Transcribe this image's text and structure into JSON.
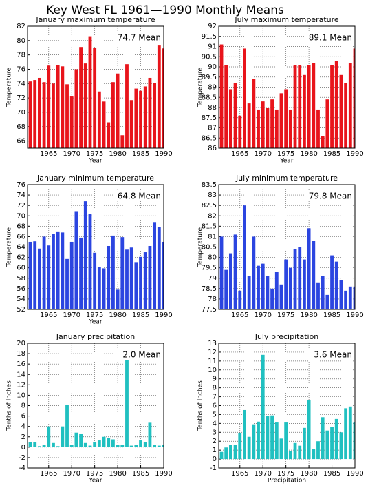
{
  "title": "Key West FL  1961—1990 Monthly Means",
  "chart_data": [
    {
      "type": "bar",
      "title": "January maximum temperature",
      "annotation": "74.7 Mean",
      "ylabel": "Temperature",
      "xlabel": "Year",
      "color": "#e8141b",
      "grid": true,
      "x": [
        1961,
        1962,
        1963,
        1964,
        1965,
        1966,
        1967,
        1968,
        1969,
        1970,
        1971,
        1972,
        1973,
        1974,
        1975,
        1976,
        1977,
        1978,
        1979,
        1980,
        1981,
        1982,
        1983,
        1984,
        1985,
        1986,
        1987,
        1988,
        1989,
        1990
      ],
      "values": [
        74.3,
        74.5,
        74.8,
        74.2,
        76.5,
        74.0,
        76.6,
        76.4,
        73.9,
        72.2,
        76.0,
        79.1,
        76.8,
        80.6,
        79.0,
        72.9,
        71.5,
        68.6,
        74.2,
        75.4,
        66.8,
        76.7,
        71.7,
        73.3,
        73.0,
        73.6,
        74.8,
        74.1,
        79.3,
        78.9
      ],
      "xlim": [
        1960.4,
        1990
      ],
      "xticks": [
        1965,
        1970,
        1975,
        1980,
        1985,
        1990
      ],
      "ylim": [
        65,
        82
      ],
      "yticks": [
        66,
        68,
        70,
        72,
        74,
        76,
        78,
        80,
        82
      ]
    },
    {
      "type": "bar",
      "title": "July maximum temperature",
      "annotation": "89.1 Mean",
      "ylabel": "Temperature",
      "xlabel": "Year",
      "color": "#e8141b",
      "grid": true,
      "x": [
        1961,
        1962,
        1963,
        1964,
        1965,
        1966,
        1967,
        1968,
        1969,
        1970,
        1971,
        1972,
        1973,
        1974,
        1975,
        1976,
        1977,
        1978,
        1979,
        1980,
        1981,
        1982,
        1983,
        1984,
        1985,
        1986,
        1987,
        1988,
        1989,
        1990
      ],
      "values": [
        91.1,
        90.1,
        88.9,
        89.2,
        87.6,
        90.9,
        88.2,
        89.4,
        87.9,
        88.3,
        88.0,
        88.4,
        87.9,
        88.7,
        88.9,
        87.9,
        90.1,
        90.1,
        89.6,
        90.1,
        90.2,
        87.9,
        86.6,
        88.4,
        90.1,
        90.3,
        89.6,
        89.2,
        90.2,
        90.9
      ],
      "xlim": [
        1960.4,
        1990
      ],
      "xticks": [
        1965,
        1970,
        1975,
        1980,
        1985,
        1990
      ],
      "ylim": [
        86,
        92
      ],
      "yticks": [
        86,
        86.5,
        87,
        87.5,
        88,
        88.5,
        89,
        89.5,
        90,
        90.5,
        91,
        91.5,
        92
      ]
    },
    {
      "type": "bar",
      "title": "January minimum temperature",
      "annotation": "64.8 Mean",
      "ylabel": "Temperature",
      "xlabel": "Year",
      "color": "#2b45e0",
      "grid": true,
      "x": [
        1961,
        1962,
        1963,
        1964,
        1965,
        1966,
        1967,
        1968,
        1969,
        1970,
        1971,
        1972,
        1973,
        1974,
        1975,
        1976,
        1977,
        1978,
        1979,
        1980,
        1981,
        1982,
        1983,
        1984,
        1985,
        1986,
        1987,
        1988,
        1989,
        1990
      ],
      "values": [
        65.0,
        65.1,
        63.7,
        66.0,
        64.3,
        66.5,
        67.0,
        66.8,
        61.7,
        65.0,
        70.9,
        65.8,
        72.8,
        70.3,
        62.9,
        60.2,
        59.9,
        64.2,
        66.2,
        55.8,
        65.9,
        63.5,
        63.9,
        61.1,
        62.1,
        63.0,
        64.2,
        68.8,
        67.8,
        65.0
      ],
      "xlim": [
        1960.4,
        1990
      ],
      "xticks": [
        1965,
        1970,
        1975,
        1980,
        1985,
        1990
      ],
      "ylim": [
        52,
        76
      ],
      "yticks": [
        52,
        54,
        56,
        58,
        60,
        62,
        64,
        66,
        68,
        70,
        72,
        74,
        76
      ]
    },
    {
      "type": "bar",
      "title": "July minimum temperature",
      "annotation": "79.8 Mean",
      "ylabel": "Temperature",
      "color": "#2b45e0",
      "grid": true,
      "x": [
        1961,
        1962,
        1963,
        1964,
        1965,
        1966,
        1967,
        1968,
        1969,
        1970,
        1971,
        1972,
        1973,
        1974,
        1975,
        1976,
        1977,
        1978,
        1979,
        1980,
        1981,
        1982,
        1983,
        1984,
        1985,
        1986,
        1987,
        1988,
        1989,
        1990
      ],
      "values": [
        81.0,
        79.4,
        80.2,
        81.1,
        78.4,
        82.5,
        79.1,
        81.0,
        79.6,
        79.7,
        79.1,
        78.5,
        79.3,
        78.7,
        79.9,
        79.5,
        80.4,
        80.5,
        79.9,
        81.4,
        80.8,
        78.8,
        79.1,
        78.2,
        80.1,
        79.8,
        78.9,
        78.4,
        78.6,
        78.6
      ],
      "xlim": [
        1960.4,
        1990
      ],
      "xticks": [
        1965,
        1970,
        1975,
        1980,
        1985,
        1990
      ],
      "ylim": [
        77.5,
        83.5
      ],
      "yticks": [
        77.5,
        78,
        78.5,
        79,
        79.5,
        80,
        80.5,
        81,
        81.5,
        82,
        82.5,
        83,
        83.5
      ]
    },
    {
      "type": "bar",
      "title": "January precipitation",
      "annotation": "2.0 Mean",
      "ylabel": "Tenths of Inches",
      "xlabel": "Year",
      "color": "#20c0c0",
      "grid": true,
      "x": [
        1961,
        1962,
        1963,
        1964,
        1965,
        1966,
        1967,
        1968,
        1969,
        1970,
        1971,
        1972,
        1973,
        1974,
        1975,
        1976,
        1977,
        1978,
        1979,
        1980,
        1981,
        1982,
        1983,
        1984,
        1985,
        1986,
        1987,
        1988,
        1989,
        1990
      ],
      "values": [
        1.0,
        1.0,
        0.2,
        0.5,
        4.0,
        0.8,
        0.2,
        4.0,
        8.2,
        0.5,
        2.8,
        2.5,
        0.8,
        0.3,
        1.0,
        1.3,
        2.0,
        1.8,
        1.5,
        0.5,
        0.5,
        17.6,
        0.3,
        0.4,
        1.3,
        1.0,
        4.7,
        0.5,
        0.3,
        0.4
      ],
      "xlim": [
        1960.4,
        1990
      ],
      "xticks": [
        1965,
        1970,
        1975,
        1980,
        1985,
        1990
      ],
      "ylim": [
        -4,
        20
      ],
      "yticks": [
        -4,
        -2,
        0,
        2,
        4,
        6,
        8,
        10,
        12,
        14,
        16,
        18,
        20
      ]
    },
    {
      "type": "bar",
      "title": "July precipitation",
      "annotation": "3.6 Mean",
      "ylabel": "Tenths of Inches",
      "xlabel": "Precipitation",
      "color": "#20c0c0",
      "grid": true,
      "x": [
        1961,
        1962,
        1963,
        1964,
        1965,
        1966,
        1967,
        1968,
        1969,
        1970,
        1971,
        1972,
        1973,
        1974,
        1975,
        1976,
        1977,
        1978,
        1979,
        1980,
        1981,
        1982,
        1983,
        1984,
        1985,
        1986,
        1987,
        1988,
        1989,
        1990
      ],
      "values": [
        0.8,
        1.3,
        1.6,
        1.6,
        2.9,
        5.5,
        2.5,
        3.9,
        4.2,
        11.7,
        4.8,
        4.9,
        4.1,
        2.3,
        4.1,
        0.9,
        1.8,
        1.5,
        3.5,
        6.6,
        1.1,
        2.0,
        4.7,
        3.2,
        3.6,
        4.5,
        3.0,
        5.7,
        5.9,
        4.1
      ],
      "xlim": [
        1960.4,
        1990
      ],
      "xticks": [
        1965,
        1970,
        1975,
        1980,
        1985,
        1990
      ],
      "ylim": [
        -1,
        13
      ],
      "yticks": [
        -1,
        0,
        1,
        2,
        3,
        4,
        5,
        6,
        7,
        8,
        9,
        10,
        11,
        12,
        13
      ]
    }
  ]
}
